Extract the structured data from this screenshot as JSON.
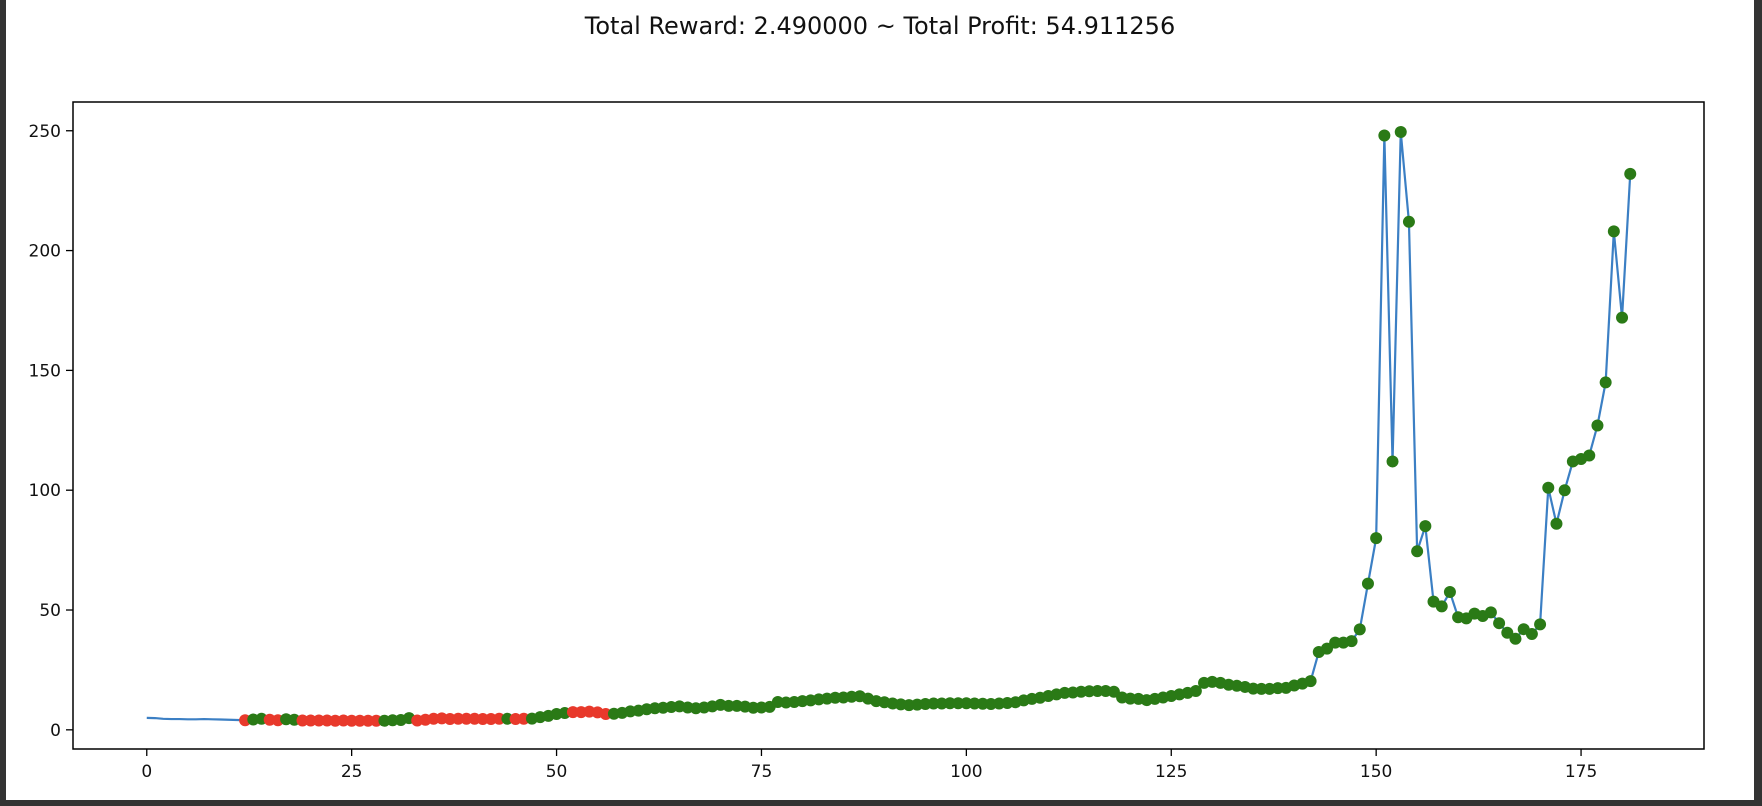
{
  "title": "Total Reward: 2.490000 ~ Total Profit: 54.911256",
  "colors": {
    "line": "#3b7fc4",
    "long": "#2a7a16",
    "short": "#e8392b",
    "axis": "#000000"
  },
  "chart_data": {
    "type": "line",
    "title": "Total Reward: 2.490000 ~ Total Profit: 54.911256",
    "xlabel": "",
    "ylabel": "",
    "xlim": [
      -9,
      190
    ],
    "ylim": [
      -8,
      262
    ],
    "x_ticks": [
      0,
      25,
      50,
      75,
      100,
      125,
      150,
      175
    ],
    "y_ticks": [
      0,
      50,
      100,
      150,
      200,
      250
    ],
    "grid": false,
    "values": [
      5.0,
      4.9,
      4.6,
      4.5,
      4.5,
      4.4,
      4.4,
      4.5,
      4.4,
      4.3,
      4.2,
      4.1,
      4.0,
      4.3,
      4.6,
      4.2,
      4.0,
      4.4,
      4.2,
      3.9,
      3.9,
      3.9,
      3.9,
      3.8,
      3.9,
      3.8,
      3.8,
      3.8,
      3.8,
      3.8,
      4.0,
      4.1,
      4.9,
      3.9,
      4.2,
      4.6,
      4.8,
      4.5,
      4.6,
      4.6,
      4.6,
      4.5,
      4.5,
      4.6,
      4.6,
      4.5,
      4.6,
      4.7,
      5.3,
      5.8,
      6.6,
      7.0,
      7.4,
      7.4,
      7.6,
      7.3,
      6.6,
      6.7,
      7.1,
      7.7,
      8.0,
      8.6,
      9.0,
      9.2,
      9.5,
      9.8,
      9.3,
      9.0,
      9.3,
      9.8,
      10.4,
      10.0,
      10.0,
      9.7,
      9.2,
      9.3,
      9.6,
      11.6,
      11.4,
      11.6,
      12.0,
      12.3,
      12.7,
      13.0,
      13.4,
      13.5,
      13.8,
      14.0,
      13.0,
      12.0,
      11.5,
      11.0,
      10.6,
      10.3,
      10.5,
      10.8,
      11.0,
      11.0,
      11.1,
      11.1,
      11.1,
      11.0,
      10.9,
      10.8,
      11.0,
      11.2,
      11.5,
      12.3,
      12.9,
      13.4,
      14.1,
      14.8,
      15.4,
      15.6,
      15.9,
      16.1,
      16.2,
      16.2,
      15.9,
      13.5,
      13.0,
      12.9,
      12.4,
      12.9,
      13.5,
      14.1,
      14.8,
      15.4,
      16.2,
      19.6,
      20.0,
      19.6,
      18.8,
      18.4,
      17.9,
      17.2,
      17.1,
      17.1,
      17.4,
      17.5,
      18.5,
      19.3,
      20.3,
      32.5,
      33.9,
      36.4,
      36.4,
      37.0,
      41.9,
      61.0,
      80.0,
      248.0,
      112.0,
      249.5,
      212.0,
      74.5,
      85.0,
      53.5,
      51.5,
      57.5,
      47.0,
      46.5,
      48.5,
      47.5,
      49.0,
      44.5,
      40.5,
      38.0,
      42.0,
      40.0,
      44.0,
      101.0,
      86.0,
      100.0,
      112.0,
      113.0,
      114.5,
      127.0,
      145.0,
      208.0,
      172.0,
      232.0
    ],
    "position_markers": {
      "start_index": 12,
      "short_indices": [
        12,
        15,
        16,
        19,
        20,
        21,
        22,
        23,
        24,
        25,
        26,
        27,
        28,
        33,
        34,
        35,
        36,
        37,
        38,
        39,
        40,
        41,
        42,
        43,
        45,
        46,
        52,
        53,
        54,
        55,
        56
      ],
      "long_color_name": "green",
      "short_color_name": "red"
    }
  }
}
